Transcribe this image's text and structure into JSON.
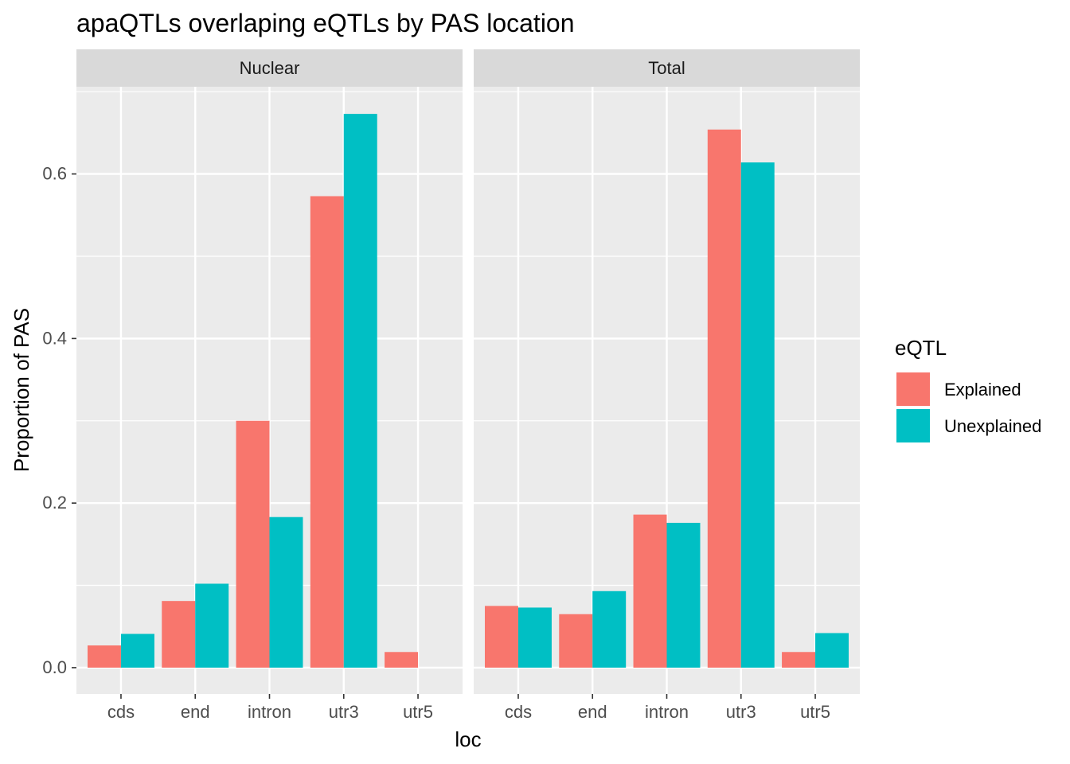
{
  "chart_data": {
    "type": "bar",
    "title": "apaQTLs overlaping eQTLs by PAS location",
    "xlabel": "loc",
    "ylabel": "Proportion of PAS",
    "ylim": [
      -0.032,
      0.706
    ],
    "yticks": [
      0.0,
      0.2,
      0.4,
      0.6
    ],
    "ytick_labels": [
      "0.0",
      "0.2",
      "0.4",
      "0.6"
    ],
    "grid": true,
    "categories": [
      "cds",
      "end",
      "intron",
      "utr3",
      "utr5"
    ],
    "legend": {
      "title": "eQTL",
      "position": "right",
      "entries": [
        "Explained",
        "Unexplained"
      ]
    },
    "colors": {
      "Explained": "#F8766D",
      "Unexplained": "#00BFC4"
    },
    "facets": [
      {
        "name": "Nuclear",
        "series": [
          {
            "name": "Explained",
            "values": [
              0.027,
              0.081,
              0.3,
              0.573,
              0.019
            ]
          },
          {
            "name": "Unexplained",
            "values": [
              0.041,
              0.102,
              0.183,
              0.673,
              null
            ]
          }
        ]
      },
      {
        "name": "Total",
        "series": [
          {
            "name": "Explained",
            "values": [
              0.075,
              0.065,
              0.186,
              0.654,
              0.019
            ]
          },
          {
            "name": "Unexplained",
            "values": [
              0.073,
              0.093,
              0.176,
              0.614,
              0.042
            ]
          }
        ]
      }
    ]
  }
}
